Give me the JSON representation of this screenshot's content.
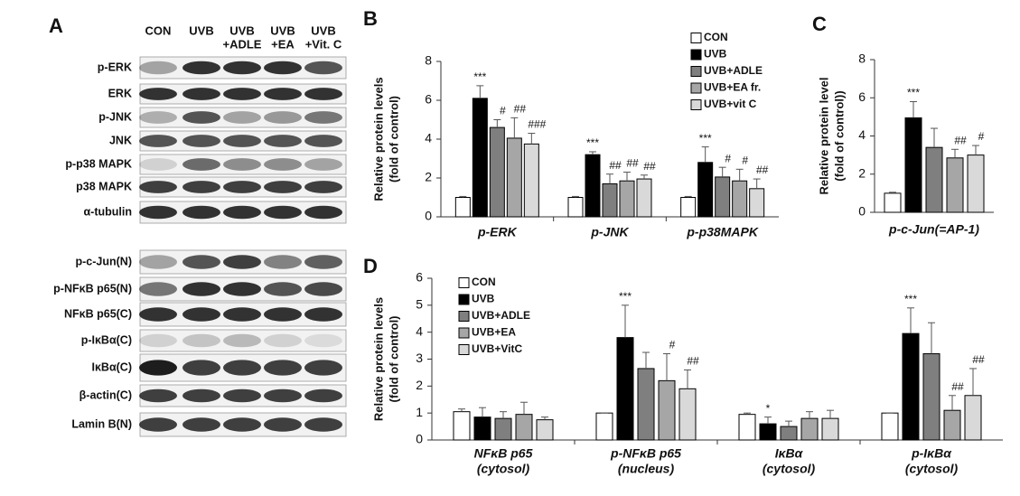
{
  "panel_labels": [
    "A",
    "B",
    "C",
    "D"
  ],
  "blot": {
    "columns": [
      [
        "CON"
      ],
      [
        "UVB"
      ],
      [
        "UVB",
        "+ADLE"
      ],
      [
        "UVB",
        "+EA"
      ],
      [
        "UVB",
        "+Vit. C"
      ]
    ],
    "rows": [
      "p-ERK",
      "ERK",
      "p-JNK",
      "JNK",
      "p-p38 MAPK",
      "p38 MAPK",
      "α-tubulin",
      "p-c-Jun(N)",
      "p-NFκB p65(N)",
      "NFκB p65(C)",
      "p-IκBα(C)",
      "IκBα(C)",
      "β-actin(C)",
      "Lamin B(N)"
    ]
  },
  "chart_data": [
    {
      "type": "bar",
      "ylabel": [
        "Relative protein levels",
        "(fold of control)"
      ],
      "categories": [
        "p-ERK",
        "p-JNK",
        "p-p38MAPK"
      ],
      "ylim": [
        0,
        8
      ],
      "yticks": [
        0,
        2,
        4,
        6,
        8
      ],
      "legend": "upper right",
      "series": [
        {
          "name": "CON",
          "color": "#ffffff",
          "values": [
            1,
            1,
            1
          ],
          "errors": [
            0.05,
            0.05,
            0.05
          ],
          "significance": [
            null,
            null,
            null
          ]
        },
        {
          "name": "UVB",
          "color": "#000000",
          "values": [
            6.1,
            3.2,
            2.8
          ],
          "errors": [
            0.65,
            0.15,
            0.8
          ],
          "significance": [
            "***",
            "***",
            "***"
          ]
        },
        {
          "name": "UVB+ADLE",
          "color": "#7f7f7f",
          "values": [
            4.6,
            1.7,
            2.05
          ],
          "errors": [
            0.4,
            0.5,
            0.5
          ],
          "significance": [
            "#",
            "##",
            "#"
          ]
        },
        {
          "name": "UVB+EA fr.",
          "color": "#a6a6a6",
          "values": [
            4.05,
            1.85,
            1.85
          ],
          "errors": [
            1.05,
            0.45,
            0.6
          ],
          "significance": [
            "##",
            "##",
            "#"
          ]
        },
        {
          "name": "UVB+vit C",
          "color": "#d9d9d9",
          "values": [
            3.75,
            1.95,
            1.45
          ],
          "errors": [
            0.55,
            0.2,
            0.5
          ],
          "significance": [
            "###",
            "##",
            "##"
          ]
        }
      ]
    },
    {
      "type": "bar",
      "ylabel": [
        "Relative protein level",
        "(fold of control))"
      ],
      "categories": [
        "p-c-Jun(=AP-1)"
      ],
      "ylim": [
        0,
        8
      ],
      "yticks": [
        0,
        2,
        4,
        6,
        8
      ],
      "legend": false,
      "series": [
        {
          "name": "CON",
          "color": "#ffffff",
          "values": [
            1
          ],
          "errors": [
            0.05
          ],
          "significance": [
            null
          ]
        },
        {
          "name": "UVB",
          "color": "#000000",
          "values": [
            4.95
          ],
          "errors": [
            0.85
          ],
          "significance": [
            "***"
          ]
        },
        {
          "name": "UVB+ADLE",
          "color": "#7f7f7f",
          "values": [
            3.4
          ],
          "errors": [
            1.0
          ],
          "significance": [
            null
          ]
        },
        {
          "name": "UVB+EA fr.",
          "color": "#a6a6a6",
          "values": [
            2.85
          ],
          "errors": [
            0.45
          ],
          "significance": [
            "##"
          ]
        },
        {
          "name": "UVB+vit C",
          "color": "#d9d9d9",
          "values": [
            3.0
          ],
          "errors": [
            0.5
          ],
          "significance": [
            "#"
          ]
        }
      ]
    },
    {
      "type": "bar",
      "ylabel": [
        "Relative protein levels",
        "(fold of control)"
      ],
      "categories": [
        [
          "NFκB p65",
          "(cytosol)"
        ],
        [
          "p-NFκB p65",
          "(nucleus)"
        ],
        [
          "IκBα",
          "(cytosol)"
        ],
        [
          "p-IκBα",
          "(cytosol)"
        ]
      ],
      "ylim": [
        0,
        6
      ],
      "yticks": [
        0,
        1,
        2,
        3,
        4,
        5,
        6
      ],
      "legend": "upper left",
      "series": [
        {
          "name": "CON",
          "color": "#ffffff",
          "values": [
            1.05,
            1.0,
            0.95,
            1.0
          ],
          "errors": [
            0.1,
            0,
            0.05,
            0
          ],
          "significance": [
            null,
            null,
            null,
            null
          ]
        },
        {
          "name": "UVB",
          "color": "#000000",
          "values": [
            0.85,
            3.8,
            0.6,
            3.95
          ],
          "errors": [
            0.35,
            1.2,
            0.25,
            0.95
          ],
          "significance": [
            null,
            "***",
            "*",
            "***"
          ]
        },
        {
          "name": "UVB+ADLE",
          "color": "#7f7f7f",
          "values": [
            0.8,
            2.65,
            0.5,
            3.2
          ],
          "errors": [
            0.25,
            0.6,
            0.2,
            1.15
          ],
          "significance": [
            null,
            null,
            null,
            null
          ]
        },
        {
          "name": "UVB+EA",
          "color": "#a6a6a6",
          "values": [
            0.95,
            2.2,
            0.8,
            1.1
          ],
          "errors": [
            0.45,
            1.0,
            0.25,
            0.55
          ],
          "significance": [
            null,
            "#",
            null,
            "##"
          ]
        },
        {
          "name": "UVB+VitC",
          "color": "#d9d9d9",
          "values": [
            0.75,
            1.9,
            0.8,
            1.65
          ],
          "errors": [
            0.1,
            0.7,
            0.3,
            1.0
          ],
          "significance": [
            null,
            "##",
            null,
            "##"
          ]
        }
      ]
    }
  ]
}
